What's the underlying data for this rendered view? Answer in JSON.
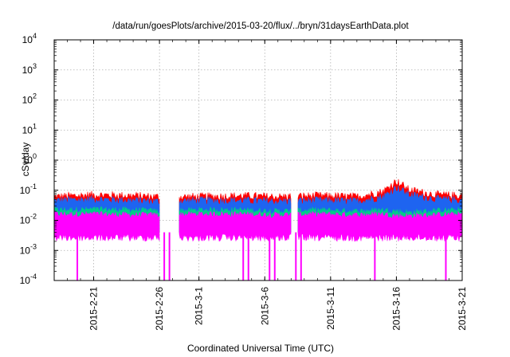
{
  "chart_data": {
    "type": "area",
    "title": "/data/run/goesPlots/archive/2015-03-20/flux/../bryn/31daysEarthData.plot",
    "xlabel": "Coordinated Universal Time (UTC)",
    "ylabel": "cSv/day",
    "y_scale": "log",
    "ylim": [
      0.0001,
      10000
    ],
    "y_ticks": [
      {
        "value": 0.0001,
        "base": "10",
        "exp": "-4"
      },
      {
        "value": 0.001,
        "base": "10",
        "exp": "-3"
      },
      {
        "value": 0.01,
        "base": "10",
        "exp": "-2"
      },
      {
        "value": 0.1,
        "base": "10",
        "exp": "-1"
      },
      {
        "value": 1,
        "base": "10",
        "exp": "0"
      },
      {
        "value": 10,
        "base": "10",
        "exp": "1"
      },
      {
        "value": 100,
        "base": "10",
        "exp": "2"
      },
      {
        "value": 1000,
        "base": "10",
        "exp": "3"
      },
      {
        "value": 10000,
        "base": "10",
        "exp": "4"
      }
    ],
    "xlim": [
      "2015-02-18",
      "2015-03-21"
    ],
    "x_ticks": [
      "2015-2-21",
      "2015-2-26",
      "2015-3-1",
      "2015-3-6",
      "2015-3-11",
      "2015-3-16",
      "2015-3-21"
    ],
    "x_tick_dates": [
      "2015-02-21",
      "2015-02-26",
      "2015-03-01",
      "2015-03-06",
      "2015-03-11",
      "2015-03-16",
      "2015-03-21"
    ],
    "grid": true,
    "data_gaps": [
      [
        "2015-02-26",
        "2015-02-27"
      ],
      [
        "2015-03-08",
        "2015-03-08"
      ]
    ],
    "spikes_down_dates": [
      "2015-02-20",
      "2015-02-26",
      "2015-02-27",
      "2015-03-04",
      "2015-03-05",
      "2015-03-06",
      "2015-03-07",
      "2015-03-08",
      "2015-03-09",
      "2015-03-14",
      "2015-03-20"
    ],
    "series": [
      {
        "color": "#ff0000",
        "x": [
          "2015-02-18",
          "2015-02-21",
          "2015-02-24",
          "2015-02-26",
          "2015-03-01",
          "2015-03-04",
          "2015-03-07",
          "2015-03-10",
          "2015-03-13",
          "2015-03-15",
          "2015-03-16",
          "2015-03-17",
          "2015-03-19",
          "2015-03-21"
        ],
        "y": [
          0.06,
          0.07,
          0.065,
          0.06,
          0.06,
          0.065,
          0.06,
          0.065,
          0.06,
          0.09,
          0.2,
          0.1,
          0.07,
          0.065
        ]
      },
      {
        "color": "#1e64f0",
        "x": [
          "2015-02-18",
          "2015-02-21",
          "2015-02-24",
          "2015-02-26",
          "2015-03-01",
          "2015-03-04",
          "2015-03-07",
          "2015-03-10",
          "2015-03-13",
          "2015-03-15",
          "2015-03-16",
          "2015-03-17",
          "2015-03-19",
          "2015-03-21"
        ],
        "y": [
          0.045,
          0.05,
          0.045,
          0.042,
          0.045,
          0.045,
          0.042,
          0.045,
          0.042,
          0.06,
          0.12,
          0.07,
          0.05,
          0.045
        ]
      },
      {
        "color": "#00cc88",
        "x": [
          "2015-02-18",
          "2015-02-21",
          "2015-02-24",
          "2015-02-26",
          "2015-03-01",
          "2015-03-04",
          "2015-03-07",
          "2015-03-10",
          "2015-03-13",
          "2015-03-15",
          "2015-03-16",
          "2015-03-17",
          "2015-03-19",
          "2015-03-21"
        ],
        "y": [
          0.022,
          0.023,
          0.022,
          0.02,
          0.022,
          0.022,
          0.02,
          0.022,
          0.02,
          0.022,
          0.02,
          0.018,
          0.021,
          0.022
        ]
      },
      {
        "color": "#ff00ff",
        "x": [
          "2015-02-18",
          "2015-02-21",
          "2015-02-24",
          "2015-02-26",
          "2015-03-01",
          "2015-03-04",
          "2015-03-07",
          "2015-03-10",
          "2015-03-13",
          "2015-03-15",
          "2015-03-16",
          "2015-03-17",
          "2015-03-19",
          "2015-03-21"
        ],
        "y": [
          0.016,
          0.016,
          0.015,
          0.015,
          0.016,
          0.016,
          0.015,
          0.016,
          0.015,
          0.016,
          0.014,
          0.014,
          0.015,
          0.016
        ]
      }
    ],
    "floor_value": 0.004
  }
}
